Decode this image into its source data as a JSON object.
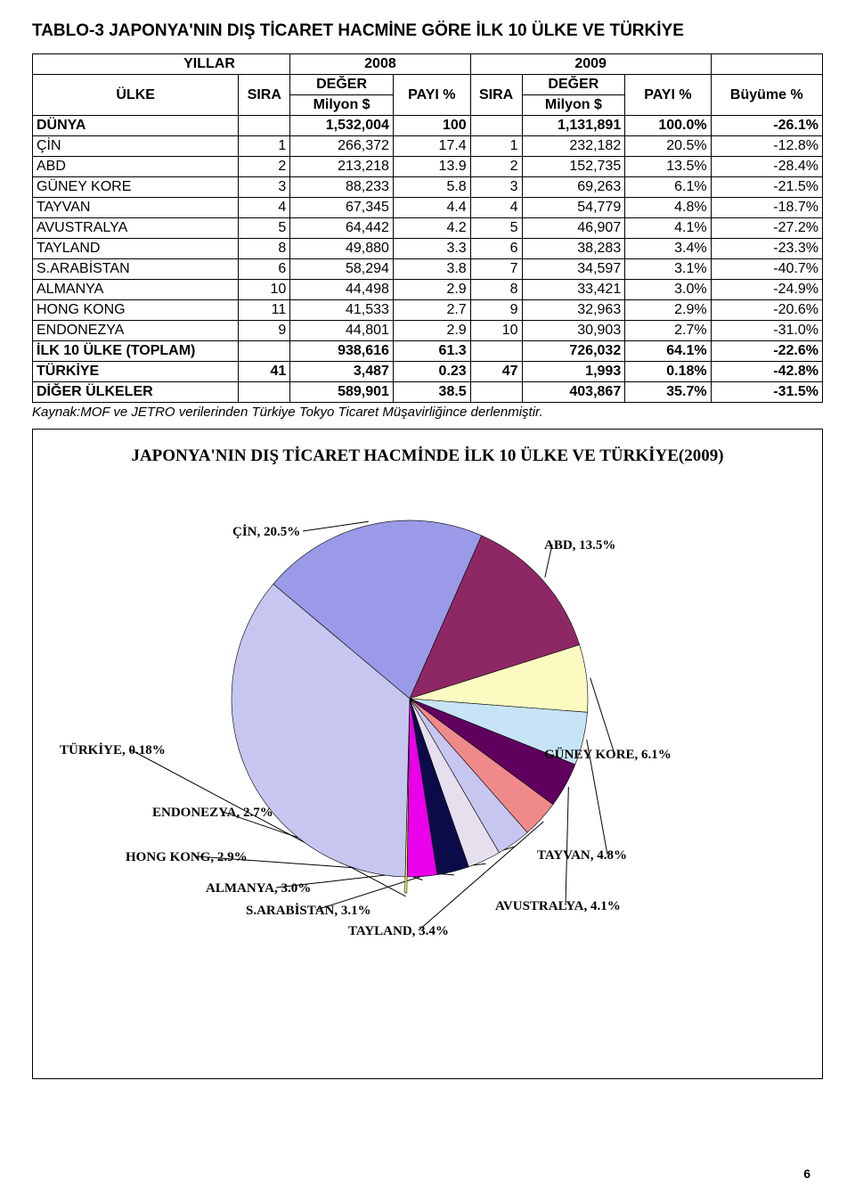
{
  "title": "TABLO-3 JAPONYA'NIN DIŞ TİCARET HACMİNE GÖRE İLK 10 ÜLKE VE TÜRKİYE",
  "header": {
    "yillar": "YILLAR",
    "ulke": "ÜLKE",
    "sira": "SIRA",
    "deger": "DEĞER",
    "milyon": "Milyon $",
    "payi": "PAYI %",
    "buyume": "Büyüme %",
    "y2008": "2008",
    "y2009": "2009"
  },
  "rows": [
    {
      "bold": true,
      "ulke": "DÜNYA",
      "sira1": "",
      "deger1": "1,532,004",
      "payi1": "100",
      "sira2": "",
      "deger2": "1,131,891",
      "payi2": "100.0%",
      "buyume": "-26.1%"
    },
    {
      "ulke": "ÇİN",
      "sira1": "1",
      "deger1": "266,372",
      "payi1": "17.4",
      "sira2": "1",
      "deger2": "232,182",
      "payi2": "20.5%",
      "buyume": "-12.8%"
    },
    {
      "ulke": "ABD",
      "sira1": "2",
      "deger1": "213,218",
      "payi1": "13.9",
      "sira2": "2",
      "deger2": "152,735",
      "payi2": "13.5%",
      "buyume": "-28.4%"
    },
    {
      "ulke": "GÜNEY KORE",
      "sira1": "3",
      "deger1": "88,233",
      "payi1": "5.8",
      "sira2": "3",
      "deger2": "69,263",
      "payi2": "6.1%",
      "buyume": "-21.5%"
    },
    {
      "ulke": "TAYVAN",
      "sira1": "4",
      "deger1": "67,345",
      "payi1": "4.4",
      "sira2": "4",
      "deger2": "54,779",
      "payi2": "4.8%",
      "buyume": "-18.7%"
    },
    {
      "ulke": "AVUSTRALYA",
      "sira1": "5",
      "deger1": "64,442",
      "payi1": "4.2",
      "sira2": "5",
      "deger2": "46,907",
      "payi2": "4.1%",
      "buyume": "-27.2%"
    },
    {
      "ulke": "TAYLAND",
      "sira1": "8",
      "deger1": "49,880",
      "payi1": "3.3",
      "sira2": "6",
      "deger2": "38,283",
      "payi2": "3.4%",
      "buyume": "-23.3%"
    },
    {
      "ulke": "S.ARABİSTAN",
      "sira1": "6",
      "deger1": "58,294",
      "payi1": "3.8",
      "sira2": "7",
      "deger2": "34,597",
      "payi2": "3.1%",
      "buyume": "-40.7%"
    },
    {
      "ulke": "ALMANYA",
      "sira1": "10",
      "deger1": "44,498",
      "payi1": "2.9",
      "sira2": "8",
      "deger2": "33,421",
      "payi2": "3.0%",
      "buyume": "-24.9%"
    },
    {
      "ulke": "HONG KONG",
      "sira1": "11",
      "deger1": "41,533",
      "payi1": "2.7",
      "sira2": "9",
      "deger2": "32,963",
      "payi2": "2.9%",
      "buyume": "-20.6%"
    },
    {
      "ulke": "ENDONEZYA",
      "sira1": "9",
      "deger1": "44,801",
      "payi1": "2.9",
      "sira2": "10",
      "deger2": "30,903",
      "payi2": "2.7%",
      "buyume": "-31.0%"
    },
    {
      "bold": true,
      "ulke": "İLK 10 ÜLKE (TOPLAM)",
      "sira1": "",
      "deger1": "938,616",
      "payi1": "61.3",
      "sira2": "",
      "deger2": "726,032",
      "payi2": "64.1%",
      "buyume": "-22.6%"
    },
    {
      "bold": true,
      "ulke": "TÜRKİYE",
      "sira1": "41",
      "deger1": "3,487",
      "payi1": "0.23",
      "sira2": "47",
      "deger2": "1,993",
      "payi2": "0.18%",
      "buyume": "-42.8%"
    },
    {
      "bold": true,
      "ulke": "DİĞER ÜLKELER",
      "sira1": "",
      "deger1": "589,901",
      "payi1": "38.5",
      "sira2": "",
      "deger2": "403,867",
      "payi2": "35.7%",
      "buyume": "-31.5%"
    }
  ],
  "source_note": "Kaynak:MOF ve JETRO verilerinden Türkiye Tokyo Ticaret Müşavirliğince derlenmiştir.",
  "chart": {
    "title": "JAPONYA'NIN DIŞ TİCARET HACMİNDE İLK 10 ÜLKE VE TÜRKİYE(2009)",
    "title_font_family": "Times New Roman",
    "title_font_size": 19,
    "type": "pie",
    "background_color": "#ffffff",
    "slice_border_color": "#000000",
    "slice_border_width": 0.6,
    "label_font_family": "Times New Roman",
    "label_font_weight": "bold",
    "label_font_size": 15,
    "leader_color": "#000000",
    "slices": [
      {
        "name": "ÇİN",
        "label": "ÇİN, 20.5%",
        "value": 20.5,
        "color": "#9a9ae8",
        "exploded": false
      },
      {
        "name": "ABD",
        "label": "ABD, 13.5%",
        "value": 13.5,
        "color": "#8e2864",
        "exploded": false
      },
      {
        "name": "GÜNEY KORE",
        "label": "GÜNEY KORE, 6.1%",
        "value": 6.1,
        "color": "#fbfac1",
        "exploded": false
      },
      {
        "name": "TAYVAN",
        "label": "TAYVAN, 4.8%",
        "value": 4.8,
        "color": "#c7e4f6",
        "exploded": false
      },
      {
        "name": "AVUSTRALYA",
        "label": "AVUSTRALYA, 4.1%",
        "value": 4.1,
        "color": "#5f005f",
        "exploded": false
      },
      {
        "name": "TAYLAND",
        "label": "TAYLAND, 3.4%",
        "value": 3.4,
        "color": "#f08a8a",
        "exploded": false
      },
      {
        "name": "S.ARABİSTAN",
        "label": "S.ARABİSTAN, 3.1%",
        "value": 3.1,
        "color": "#c6c6f0",
        "exploded": false
      },
      {
        "name": "ALMANYA",
        "label": "ALMANYA, 3.0%",
        "value": 3.0,
        "color": "#e6e0ee",
        "exploded": false
      },
      {
        "name": "HONG KONG",
        "label": "HONG KONG, 2.9%",
        "value": 2.9,
        "color": "#0b0b4a",
        "exploded": false
      },
      {
        "name": "ENDONEZYA",
        "label": "ENDONEZYA, 2.7%",
        "value": 2.7,
        "color": "#ea00ea",
        "exploded": false
      },
      {
        "name": "TÜRKİYE",
        "label": "TÜRKİYE, 0.18%",
        "value": 0.18,
        "color": "#ffff66",
        "exploded": true,
        "explosion": 18
      },
      {
        "name": "DİĞER",
        "label": "",
        "value": 35.7,
        "color": "#c6c6f0",
        "exploded": false,
        "no_label": true
      }
    ]
  },
  "page_number": "6"
}
